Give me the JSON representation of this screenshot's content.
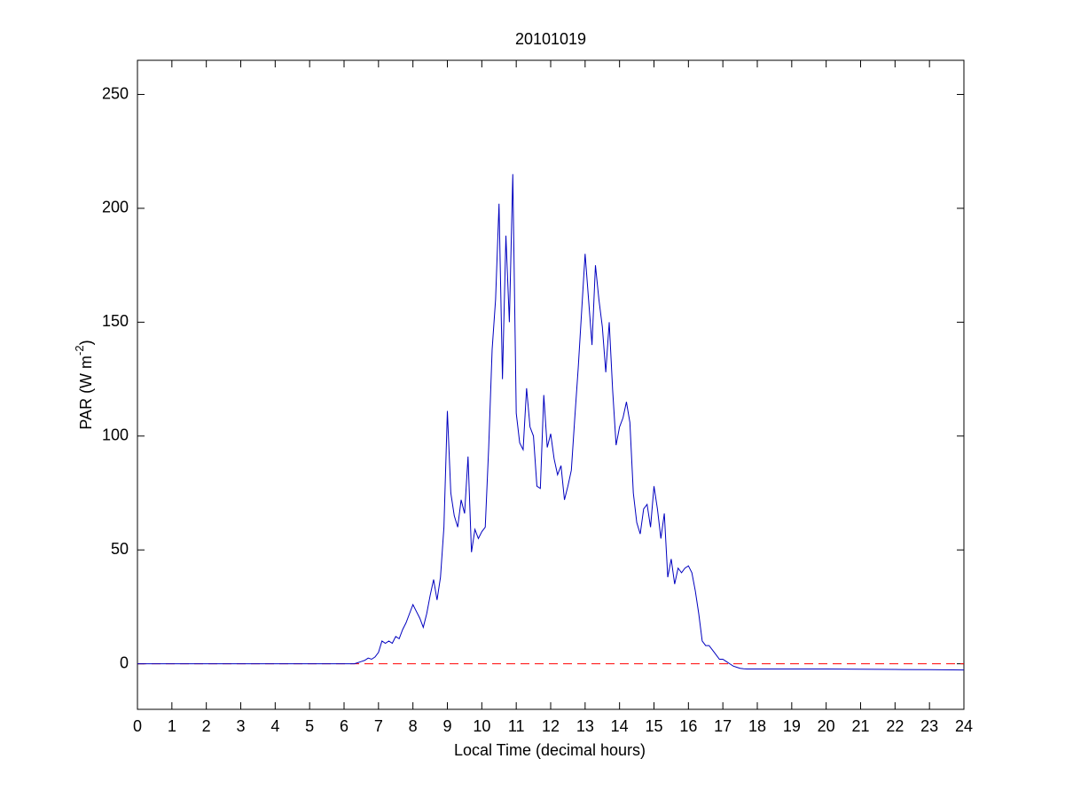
{
  "chart_data": {
    "type": "line",
    "title": "20101019",
    "x_label": "Local Time (decimal hours)",
    "y_label": {
      "text": "PAR (W m",
      "sup": "-2",
      "tail": ")"
    },
    "x": [
      0,
      1,
      2,
      3,
      4,
      5,
      6.0,
      6.1,
      6.2,
      6.3,
      6.4,
      6.5,
      6.6,
      6.7,
      6.8,
      6.9,
      7.0,
      7.1,
      7.2,
      7.3,
      7.4,
      7.5,
      7.6,
      7.7,
      7.8,
      7.9,
      8.0,
      8.1,
      8.2,
      8.3,
      8.4,
      8.5,
      8.6,
      8.7,
      8.8,
      8.9,
      9.0,
      9.1,
      9.2,
      9.3,
      9.4,
      9.5,
      9.6,
      9.7,
      9.8,
      9.9,
      10.0,
      10.1,
      10.2,
      10.3,
      10.4,
      10.5,
      10.6,
      10.7,
      10.8,
      10.9,
      11.0,
      11.1,
      11.2,
      11.3,
      11.4,
      11.5,
      11.6,
      11.7,
      11.8,
      11.9,
      12.0,
      12.1,
      12.2,
      12.3,
      12.4,
      12.5,
      12.6,
      12.7,
      12.8,
      12.9,
      13.0,
      13.1,
      13.2,
      13.3,
      13.4,
      13.5,
      13.6,
      13.7,
      13.8,
      13.9,
      14.0,
      14.1,
      14.2,
      14.3,
      14.4,
      14.5,
      14.6,
      14.7,
      14.8,
      14.9,
      15.0,
      15.1,
      15.2,
      15.3,
      15.4,
      15.5,
      15.6,
      15.7,
      15.8,
      15.9,
      16.0,
      16.1,
      16.2,
      16.3,
      16.4,
      16.5,
      16.6,
      16.7,
      16.8,
      16.9,
      17.0,
      17.1,
      17.2,
      17.3,
      17.4,
      17.5,
      17.6,
      17.7,
      17.8,
      17.9,
      18,
      19,
      20,
      21,
      22,
      23,
      24
    ],
    "values": [
      0,
      0,
      0,
      0,
      0,
      0,
      0,
      0,
      0,
      0,
      0.5,
      1,
      1.5,
      2.5,
      2,
      3,
      5,
      10,
      9,
      10,
      9,
      12,
      11,
      15,
      18,
      22,
      26,
      23,
      20,
      16,
      22,
      30,
      37,
      28,
      38,
      60,
      111,
      75,
      65,
      60,
      72,
      66,
      91,
      49,
      59,
      55,
      58,
      60,
      95,
      138,
      160,
      202,
      125,
      188,
      150,
      215,
      110,
      97,
      94,
      121,
      104,
      100,
      78,
      77,
      118,
      95,
      101,
      90,
      83,
      87,
      72,
      78,
      85,
      108,
      130,
      155,
      180,
      160,
      140,
      175,
      160,
      148,
      128,
      150,
      120,
      96,
      104,
      108,
      115,
      106,
      75,
      62,
      57,
      68,
      70,
      60,
      78,
      68,
      55,
      66,
      38,
      46,
      35,
      42,
      40,
      42,
      43,
      40,
      32,
      22,
      10,
      8,
      8,
      6,
      4,
      2,
      2,
      1,
      0,
      -1,
      -1.5,
      -2,
      -2.2,
      -2.3,
      -2.3,
      -2.3,
      -2.3,
      -2.3,
      -2.3,
      -2.4,
      -2.5,
      -2.6,
      -2.7
    ],
    "color": "#0000bf",
    "reference_line": {
      "value": 0,
      "color": "#ff0000",
      "style": "dashed"
    },
    "xlim": [
      0,
      24
    ],
    "ylim": [
      -20,
      265
    ],
    "xticks": [
      0,
      1,
      2,
      3,
      4,
      5,
      6,
      7,
      8,
      9,
      10,
      11,
      12,
      13,
      14,
      15,
      16,
      17,
      18,
      19,
      20,
      21,
      22,
      23,
      24
    ],
    "yticks": [
      0,
      50,
      100,
      150,
      200,
      250
    ]
  }
}
